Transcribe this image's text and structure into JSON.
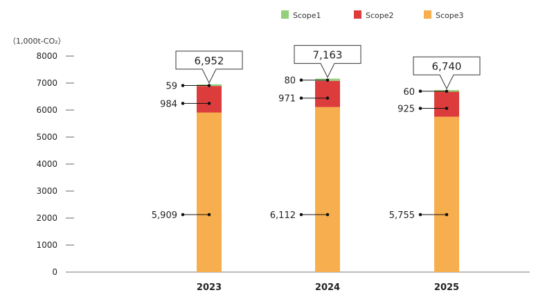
{
  "chart_data": {
    "type": "bar",
    "stacked": true,
    "unit_label": "（1,000t-CO₂）",
    "categories": [
      "2023",
      "2024",
      "2025"
    ],
    "series": [
      {
        "name": "Scope1",
        "color": "#92d07a",
        "values": [
          59,
          80,
          60
        ],
        "labels": [
          "59",
          "80",
          "60"
        ]
      },
      {
        "name": "Scope2",
        "color": "#dc3c3c",
        "values": [
          984,
          971,
          925
        ],
        "labels": [
          "984",
          "971",
          "925"
        ]
      },
      {
        "name": "Scope3",
        "color": "#f7ae4e",
        "values": [
          5909,
          6112,
          5755
        ],
        "labels": [
          "5,909",
          "6,112",
          "5,755"
        ]
      }
    ],
    "totals": [
      "6,952",
      "7,163",
      "6,740"
    ],
    "yticks": [
      "0",
      "1000",
      "2000",
      "3000",
      "4000",
      "5000",
      "6000",
      "7000",
      "8000"
    ],
    "ylim": [
      0,
      8000
    ],
    "legend_position": "top-right",
    "grid": false
  }
}
